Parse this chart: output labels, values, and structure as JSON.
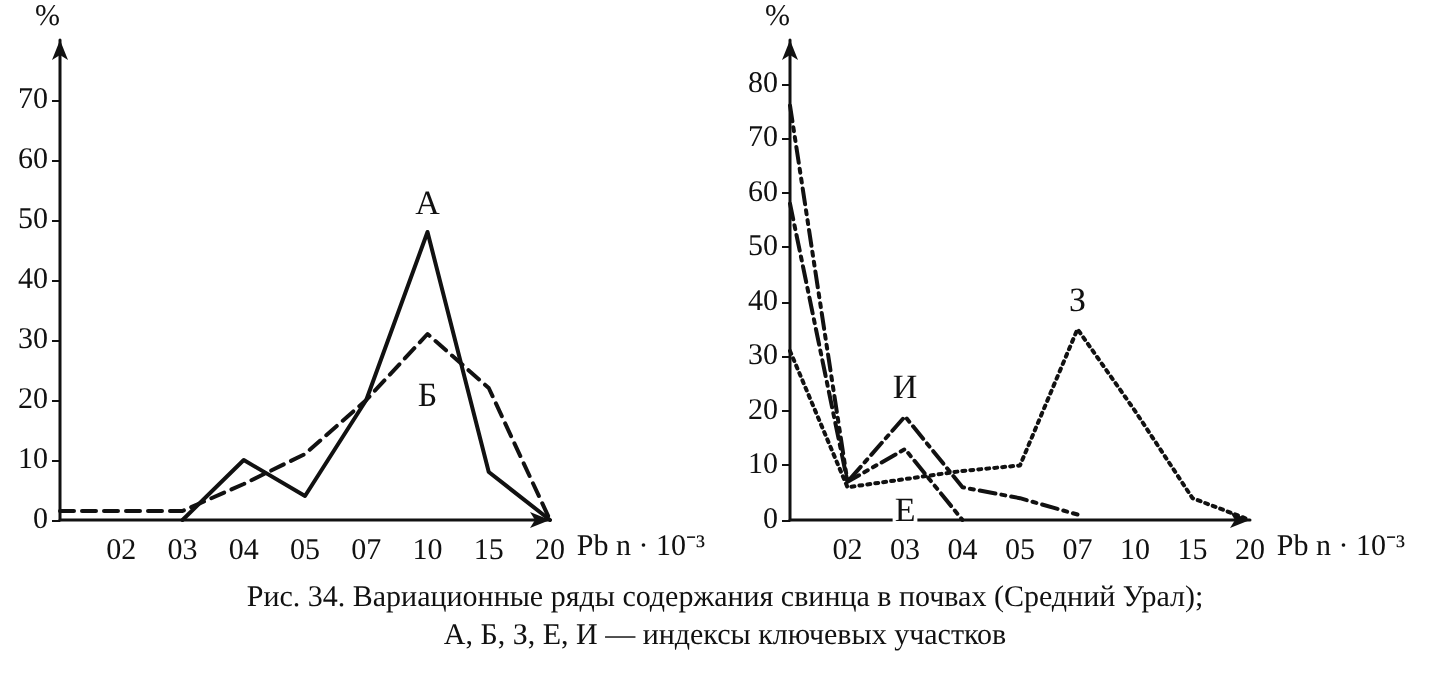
{
  "chart_data": [
    {
      "type": "line",
      "categories": [
        null,
        "02",
        "03",
        "04",
        "05",
        "07",
        "10",
        "15",
        "20"
      ],
      "ylabel": "%",
      "xlabel": "Pb n · 10⁻³",
      "ylim": [
        0,
        80
      ],
      "yticks": [
        0,
        10,
        20,
        30,
        40,
        50,
        60,
        70
      ],
      "grid": false,
      "legend": false,
      "marker": "none",
      "series": [
        {
          "name": "А",
          "color": "#111111",
          "line_style": "solid",
          "values": [
            null,
            null,
            0,
            10,
            4,
            20,
            48,
            8,
            0
          ]
        },
        {
          "name": "Б",
          "color": "#111111",
          "line_style": "dashed",
          "values": [
            1.5,
            1.5,
            1.5,
            6,
            11,
            20,
            31,
            22,
            0
          ]
        }
      ],
      "annotations": [
        "Рис. 34. Вариационные ряды содержания свинца в почвах (Средний Урал);",
        "А, Б, З, Е, И — индексы ключевых участков"
      ]
    },
    {
      "type": "line",
      "categories": [
        null,
        "02",
        "03",
        "04",
        "05",
        "07",
        "10",
        "15",
        "20"
      ],
      "ylabel": "%",
      "xlabel": "Pb n · 10⁻³",
      "ylim": [
        0,
        88
      ],
      "yticks": [
        0,
        10,
        20,
        30,
        40,
        50,
        60,
        70,
        80
      ],
      "grid": false,
      "legend": false,
      "marker": "none",
      "series": [
        {
          "name": "З",
          "color": "#111111",
          "line_style": "dotted",
          "values": [
            31,
            6,
            7.5,
            9,
            10,
            35,
            20,
            4,
            0
          ]
        },
        {
          "name": "И",
          "color": "#111111",
          "line_style": "dashdot",
          "values": [
            58,
            7,
            19,
            6,
            4,
            1,
            null,
            null,
            null
          ]
        },
        {
          "name": "Е",
          "color": "#111111",
          "line_style": "dashdotdot",
          "values": [
            76,
            7,
            13,
            0,
            null,
            null,
            null,
            null,
            null
          ]
        }
      ]
    }
  ]
}
